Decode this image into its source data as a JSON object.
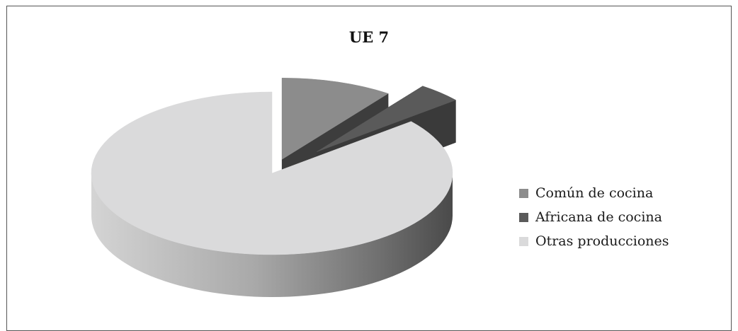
{
  "chart_data": {
    "type": "pie",
    "title": "UE 7",
    "slices": [
      {
        "label": "Común de cocina",
        "value": 10,
        "color": "#8c8c8c",
        "side_color": "#3d3d3d"
      },
      {
        "label": "Africana de cocina",
        "value": 4,
        "color": "#5a5a5a",
        "side_color": "#3a3a3a"
      },
      {
        "label": "Otras producciones",
        "value": 86,
        "color": "#dadadb",
        "side_color": "#c0c0c0"
      }
    ],
    "legend_position": "right"
  }
}
